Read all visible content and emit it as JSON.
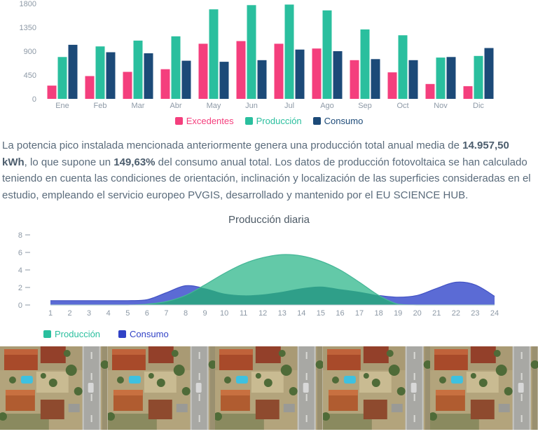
{
  "chart_data": [
    {
      "id": "monthly",
      "type": "bar",
      "categories": [
        "Ene",
        "Feb",
        "Mar",
        "Abr",
        "May",
        "Jun",
        "Jul",
        "Ago",
        "Sep",
        "Oct",
        "Nov",
        "Dic"
      ],
      "series": [
        {
          "name": "Excedentes",
          "color": "#f43f7d",
          "values": [
            250,
            430,
            510,
            560,
            1040,
            1090,
            1040,
            950,
            730,
            500,
            280,
            240
          ]
        },
        {
          "name": "Producción",
          "color": "#2abf9e",
          "values": [
            790,
            990,
            1100,
            1180,
            1690,
            1770,
            1780,
            1670,
            1310,
            1200,
            780,
            810
          ]
        },
        {
          "name": "Consumo",
          "color": "#1c4a78",
          "values": [
            1020,
            880,
            860,
            720,
            700,
            730,
            930,
            900,
            750,
            730,
            790,
            960
          ]
        }
      ],
      "ylim": [
        0,
        1800
      ],
      "yticks": [
        0,
        450,
        900,
        1350,
        1800
      ],
      "axis_color": "#8d99a6",
      "grid": false,
      "legend_position": "bottom-center"
    },
    {
      "id": "daily",
      "type": "area",
      "title": "Producción diaria",
      "x": [
        1,
        2,
        3,
        4,
        5,
        6,
        7,
        8,
        9,
        10,
        11,
        12,
        13,
        14,
        15,
        16,
        17,
        18,
        19,
        20,
        21,
        22,
        23,
        24
      ],
      "ylim": [
        0,
        8
      ],
      "yticks": [
        0,
        2,
        4,
        6,
        8
      ],
      "axis_color": "#8d99a6",
      "grid": false,
      "legend_position": "bottom-left",
      "series": [
        {
          "name": "Producción",
          "color": "#2abf9e",
          "fill": "#63c9a8",
          "stroke": "#45b797",
          "values": [
            0,
            0,
            0,
            0,
            0,
            0.1,
            0.4,
            1.1,
            2.3,
            3.6,
            4.7,
            5.4,
            5.75,
            5.6,
            5.0,
            4.0,
            2.6,
            1.1,
            0.1,
            0,
            0,
            0,
            0,
            0
          ]
        },
        {
          "name": "Consumo",
          "color": "#3142c6",
          "fill": "#5b6bd5",
          "stroke": "#4353c4",
          "overlap_fill": "#2f9f89",
          "values": [
            0.5,
            0.5,
            0.5,
            0.5,
            0.5,
            0.6,
            1.4,
            2.2,
            1.9,
            1.3,
            1.1,
            1.2,
            1.5,
            1.9,
            2.1,
            1.8,
            1.5,
            1.1,
            0.9,
            1.1,
            1.9,
            2.6,
            2.3,
            1.0
          ]
        }
      ]
    }
  ],
  "summary_paragraph": {
    "segments": [
      {
        "text": "La potencia pico instalada mencionada anteriormente genera una producción total anual media de ",
        "bold": false
      },
      {
        "text": "14.957,50 kWh",
        "bold": true
      },
      {
        "text": ", lo que supone un ",
        "bold": false
      },
      {
        "text": "149,63%",
        "bold": true
      },
      {
        "text": " del consumo anual total. Los datos de producción fotovoltaica se han calculado teniendo en cuenta las condiciones de orientación, inclinación y localización de las superficies consideradas en el estudio, empleando el servicio europeo PVGIS, desarrollado y mantenido por el EU SCIENCE HUB.",
        "bold": false
      }
    ]
  },
  "satellite_strip": {
    "tiles": 5
  }
}
